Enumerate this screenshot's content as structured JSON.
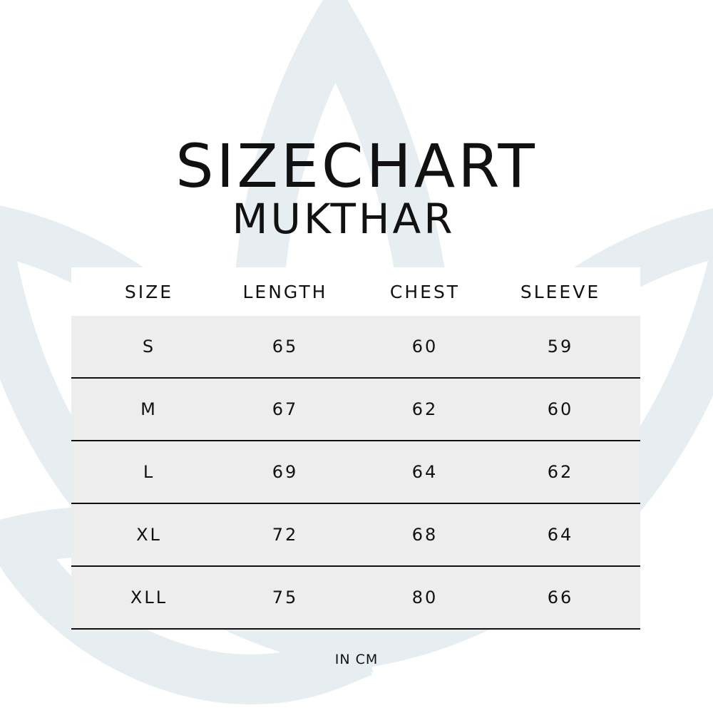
{
  "title": "SIZECHART",
  "subtitle": "MUKTHAR",
  "table": {
    "headers": [
      "SIZE",
      "LENGTH",
      "CHEST",
      "SLEEVE"
    ],
    "rows": [
      [
        "S",
        "65",
        "60",
        "59"
      ],
      [
        "M",
        "67",
        "62",
        "60"
      ],
      [
        "L",
        "69",
        "64",
        "62"
      ],
      [
        "XL",
        "72",
        "68",
        "64"
      ],
      [
        "XLL",
        "75",
        "80",
        "66"
      ]
    ]
  },
  "unit_note": "IN CM",
  "colors": {
    "background_motif": "#e6eef1",
    "row_fill": "#ededed",
    "text": "#111111"
  }
}
